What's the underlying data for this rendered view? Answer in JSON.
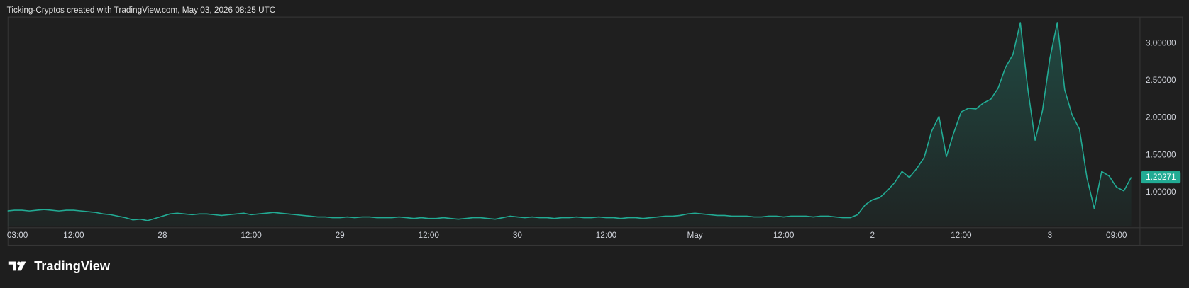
{
  "header": "Ticking-Cryptos created with TradingView.com, May 03, 2026 08:25 UTC",
  "brand": "TradingView",
  "chart_data": {
    "type": "area",
    "color": "#22ab94",
    "categories": [
      "03:00",
      null,
      null,
      null,
      null,
      null,
      null,
      null,
      null,
      "12:00",
      null,
      null,
      null,
      null,
      null,
      null,
      null,
      null,
      null,
      null,
      null,
      "28",
      null,
      null,
      null,
      null,
      null,
      null,
      null,
      null,
      null,
      null,
      null,
      "12:00",
      null,
      null,
      null,
      null,
      null,
      null,
      null,
      null,
      null,
      null,
      null,
      "29",
      null,
      null,
      null,
      null,
      null,
      null,
      null,
      null,
      null,
      null,
      null,
      "12:00",
      null,
      null,
      null,
      null,
      null,
      null,
      null,
      null,
      null,
      null,
      null,
      "30",
      null,
      null,
      null,
      null,
      null,
      null,
      null,
      null,
      null,
      null,
      null,
      "12:00",
      null,
      null,
      null,
      null,
      null,
      null,
      null,
      null,
      null,
      null,
      null,
      "May",
      null,
      null,
      null,
      null,
      null,
      null,
      null,
      null,
      null,
      null,
      null,
      "12:00",
      null,
      null,
      null,
      null,
      null,
      null,
      null,
      null,
      null,
      null,
      null,
      "2",
      null,
      null,
      null,
      null,
      null,
      null,
      null,
      null,
      null,
      null,
      null,
      "12:00",
      null,
      null,
      null,
      null,
      null,
      null,
      null,
      null,
      null,
      null,
      null,
      "3",
      null,
      null,
      null,
      null,
      null,
      null,
      null,
      null,
      "09:00",
      null,
      null
    ],
    "values": [
      0.75,
      0.76,
      0.76,
      0.75,
      0.76,
      0.77,
      0.76,
      0.75,
      0.76,
      0.76,
      0.75,
      0.74,
      0.73,
      0.71,
      0.7,
      0.68,
      0.66,
      0.63,
      0.64,
      0.62,
      0.65,
      0.68,
      0.71,
      0.72,
      0.71,
      0.7,
      0.71,
      0.71,
      0.7,
      0.69,
      0.7,
      0.71,
      0.72,
      0.7,
      0.71,
      0.72,
      0.73,
      0.72,
      0.71,
      0.7,
      0.69,
      0.68,
      0.67,
      0.67,
      0.66,
      0.66,
      0.67,
      0.66,
      0.67,
      0.67,
      0.66,
      0.66,
      0.66,
      0.67,
      0.66,
      0.65,
      0.66,
      0.65,
      0.65,
      0.66,
      0.65,
      0.64,
      0.65,
      0.66,
      0.66,
      0.65,
      0.64,
      0.66,
      0.68,
      0.67,
      0.66,
      0.67,
      0.66,
      0.66,
      0.65,
      0.66,
      0.66,
      0.67,
      0.66,
      0.66,
      0.67,
      0.66,
      0.66,
      0.65,
      0.66,
      0.66,
      0.65,
      0.66,
      0.67,
      0.68,
      0.68,
      0.69,
      0.71,
      0.72,
      0.71,
      0.7,
      0.69,
      0.69,
      0.68,
      0.68,
      0.68,
      0.67,
      0.67,
      0.68,
      0.68,
      0.67,
      0.68,
      0.68,
      0.68,
      0.67,
      0.68,
      0.68,
      0.67,
      0.66,
      0.66,
      0.7,
      0.83,
      0.9,
      0.93,
      1.02,
      1.13,
      1.28,
      1.2,
      1.32,
      1.47,
      1.82,
      2.02,
      1.48,
      1.8,
      2.08,
      2.13,
      2.12,
      2.2,
      2.25,
      2.4,
      2.68,
      2.85,
      3.28,
      2.4,
      1.7,
      2.1,
      2.8,
      3.28,
      2.38,
      2.04,
      1.85,
      1.2,
      0.78,
      1.28,
      1.22,
      1.07,
      1.02,
      1.20271
    ],
    "ylim": [
      0.55,
      3.36
    ],
    "yticks": [
      {
        "value": 1,
        "label": "1.00000"
      },
      {
        "value": 1.5,
        "label": "1.50000"
      },
      {
        "value": 2,
        "label": "2.00000"
      },
      {
        "value": 2.5,
        "label": "2.50000"
      },
      {
        "value": 3,
        "label": "3.00000"
      }
    ]
  }
}
